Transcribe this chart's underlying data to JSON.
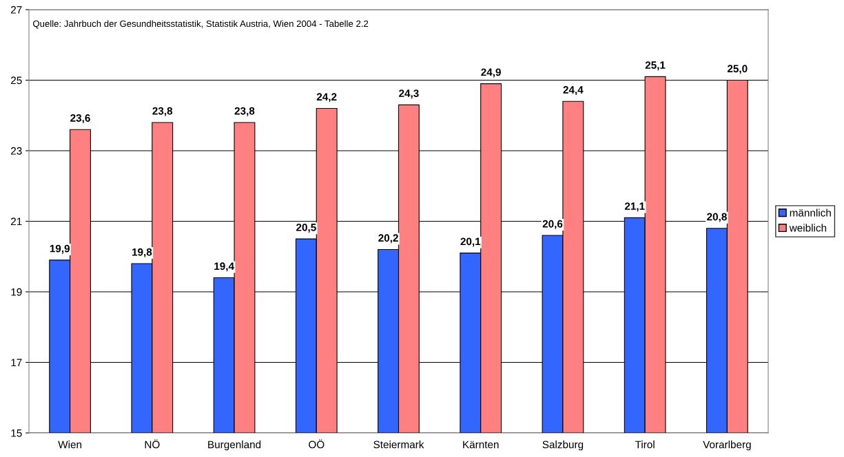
{
  "chart_data": {
    "type": "bar",
    "categories": [
      "Wien",
      "NÖ",
      "Burgenland",
      "OÖ",
      "Steiermark",
      "Kärnten",
      "Salzburg",
      "Tirol",
      "Vorarlberg"
    ],
    "series": [
      {
        "name": "männlich",
        "color": "#3366ff",
        "values": [
          19.9,
          19.8,
          19.4,
          20.5,
          20.2,
          20.1,
          20.6,
          21.1,
          20.8
        ],
        "value_labels": [
          "19,9",
          "19,8",
          "19,4",
          "20,5",
          "20,2",
          "20,1",
          "20,6",
          "21,1",
          "20,8"
        ]
      },
      {
        "name": "weiblich",
        "color": "#ff8080",
        "values": [
          23.6,
          23.8,
          23.8,
          24.2,
          24.3,
          24.9,
          24.4,
          25.1,
          25.0
        ],
        "value_labels": [
          "23,6",
          "23,8",
          "23,8",
          "24,2",
          "24,3",
          "24,9",
          "24,4",
          "25,1",
          "25,0"
        ]
      }
    ],
    "ylim": [
      15,
      27
    ],
    "yticks": [
      15,
      17,
      19,
      21,
      23,
      25,
      27
    ],
    "grid": "y",
    "legend": "right",
    "annotations": [
      "Quelle: Jahrbuch der Gesundheitsstatistik, Statistik Austria, Wien 2004 - Tabelle 2.2"
    ]
  }
}
